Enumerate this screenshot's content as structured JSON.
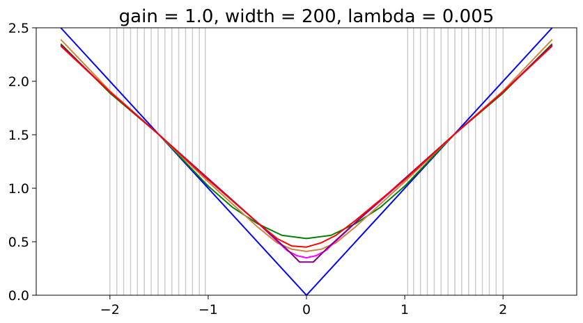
{
  "chart_data": {
    "type": "line",
    "title": "gain = 1.0, width = 200, lambda = 0.005",
    "xlabel": "",
    "ylabel": "",
    "xlim": [
      -2.75,
      2.75
    ],
    "ylim": [
      0.0,
      2.5
    ],
    "x_ticks": [
      -2,
      -1,
      0,
      1,
      2
    ],
    "x_tick_labels": [
      "−2",
      "−1",
      "0",
      "1",
      "2"
    ],
    "y_ticks": [
      0.0,
      0.5,
      1.0,
      1.5,
      2.0,
      2.5
    ],
    "y_tick_labels": [
      "0.0",
      "0.5",
      "1.0",
      "1.5",
      "2.0",
      "2.5"
    ],
    "grid": false,
    "legend": "none",
    "vertical_lines": {
      "color": "#cccccc",
      "x": [
        -2.0,
        -1.93,
        -1.86,
        -1.79,
        -1.72,
        -1.65,
        -1.58,
        -1.51,
        -1.44,
        -1.37,
        -1.3,
        -1.23,
        -1.16,
        -1.09,
        -1.03,
        1.03,
        1.09,
        1.16,
        1.23,
        1.3,
        1.37,
        1.44,
        1.51,
        1.58,
        1.65,
        1.72,
        1.79,
        1.86,
        1.93,
        2.0
      ]
    },
    "series": [
      {
        "color": "#0000ff",
        "x": [
          -2.5,
          0.0,
          2.5
        ],
        "y": [
          2.5,
          0.0,
          2.5
        ]
      },
      {
        "color": "#008000",
        "x": [
          -2.5,
          -2.0,
          -1.5,
          -1.0,
          -0.75,
          -0.5,
          -0.25,
          0.0,
          0.25,
          0.5,
          0.75,
          1.0,
          1.5,
          2.0,
          2.5
        ],
        "y": [
          2.35,
          1.89,
          1.5,
          1.02,
          0.82,
          0.67,
          0.56,
          0.53,
          0.56,
          0.67,
          0.82,
          1.02,
          1.5,
          1.89,
          2.35
        ]
      },
      {
        "color": "#cd853f",
        "x": [
          -2.5,
          -2.0,
          -1.5,
          -1.0,
          -0.5,
          -0.3,
          -0.15,
          0.0,
          0.15,
          0.3,
          0.5,
          1.0,
          1.5,
          2.0,
          2.5
        ],
        "y": [
          2.39,
          1.91,
          1.5,
          1.06,
          0.64,
          0.49,
          0.43,
          0.41,
          0.43,
          0.49,
          0.64,
          1.06,
          1.5,
          1.91,
          2.39
        ]
      },
      {
        "color": "#ff00ff",
        "x": [
          -2.5,
          -2.0,
          -1.5,
          -1.0,
          -0.5,
          -0.2,
          -0.1,
          0.0,
          0.1,
          0.2,
          0.5,
          1.0,
          1.5,
          2.0,
          2.5
        ],
        "y": [
          2.33,
          1.9,
          1.5,
          1.08,
          0.68,
          0.42,
          0.37,
          0.35,
          0.37,
          0.42,
          0.68,
          1.08,
          1.5,
          1.9,
          2.33
        ]
      },
      {
        "color": "#800080",
        "x": [
          -2.5,
          -2.0,
          -1.5,
          -1.0,
          -0.5,
          -0.2,
          -0.07,
          0.07,
          0.2,
          0.5,
          1.0,
          1.5,
          2.0,
          2.5
        ],
        "y": [
          2.34,
          1.9,
          1.5,
          1.09,
          0.68,
          0.43,
          0.31,
          0.31,
          0.43,
          0.68,
          1.09,
          1.5,
          1.9,
          2.34
        ]
      },
      {
        "color": "#ff0000",
        "x": [
          -2.5,
          -2.0,
          -1.5,
          -1.0,
          -0.5,
          -0.3,
          -0.15,
          0.0,
          0.15,
          0.3,
          0.5,
          1.0,
          1.5,
          2.0,
          2.5
        ],
        "y": [
          2.33,
          1.9,
          1.5,
          1.08,
          0.68,
          0.53,
          0.46,
          0.45,
          0.49,
          0.56,
          0.7,
          1.08,
          1.5,
          1.9,
          2.33
        ]
      }
    ]
  }
}
